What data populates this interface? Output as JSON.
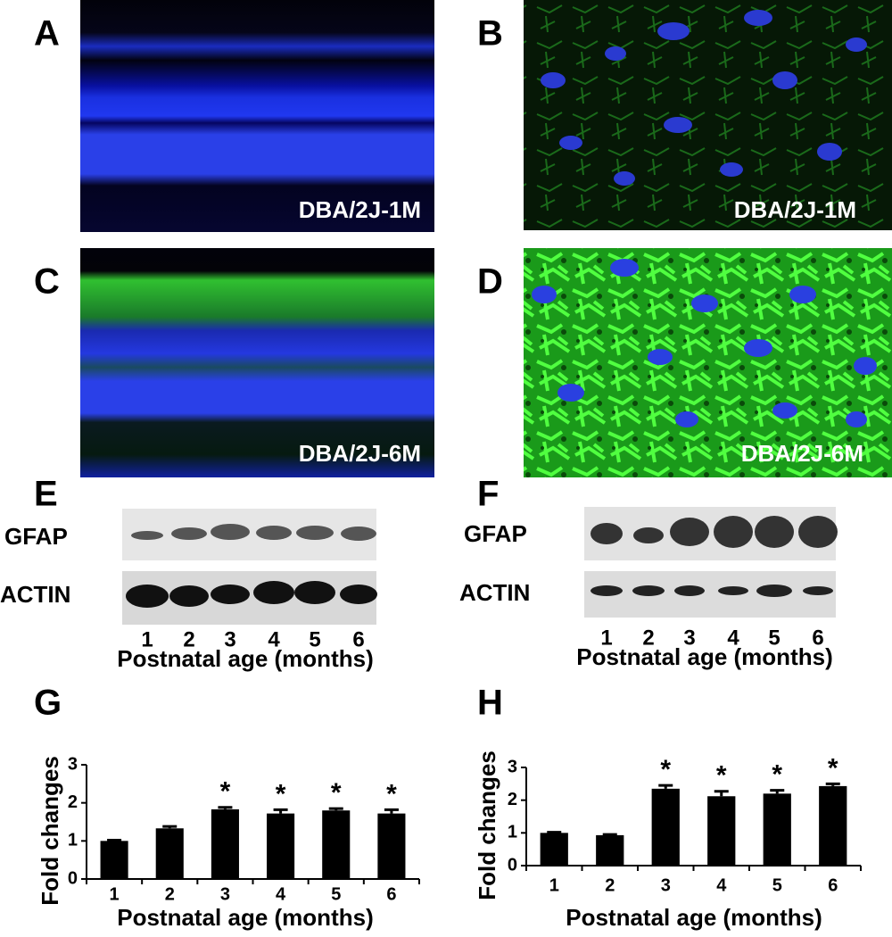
{
  "panels": [
    {
      "label": "A",
      "caption": "DBA/2J-1M"
    },
    {
      "label": "B",
      "caption": "DBA/2J-1M"
    },
    {
      "label": "C",
      "caption": "DBA/2J-6M"
    },
    {
      "label": "D",
      "caption": "DBA/2J-6M"
    }
  ],
  "blots": [
    {
      "label": "E",
      "rows": [
        "GFAP",
        "ACTIN"
      ],
      "lanes": [
        "1",
        "2",
        "3",
        "4",
        "5",
        "6"
      ],
      "xlabel": "Postnatal age (months)"
    },
    {
      "label": "F",
      "rows": [
        "GFAP",
        "ACTIN"
      ],
      "lanes": [
        "1",
        "2",
        "3",
        "4",
        "5",
        "6"
      ],
      "xlabel": "Postnatal age (months)"
    }
  ],
  "chart_data": [
    {
      "type": "bar",
      "label": "G",
      "categories": [
        "1",
        "2",
        "3",
        "4",
        "5",
        "6"
      ],
      "series": [
        {
          "color": "#000000",
          "values": [
            1.0,
            1.33,
            1.83,
            1.72,
            1.8,
            1.72
          ],
          "errors": [
            0.02,
            0.05,
            0.05,
            0.1,
            0.05,
            0.1
          ]
        }
      ],
      "ylabel": "Fold changes",
      "xlabel": "Postnatal age (months)",
      "ylim": [
        0,
        3
      ],
      "yticks": [
        0,
        1,
        2,
        3
      ],
      "annotations": [
        {
          "category": "3",
          "text": "*"
        },
        {
          "category": "4",
          "text": "*"
        },
        {
          "category": "5",
          "text": "*"
        },
        {
          "category": "6",
          "text": "*"
        }
      ]
    },
    {
      "type": "bar",
      "label": "H",
      "categories": [
        "1",
        "2",
        "3",
        "4",
        "5",
        "6"
      ],
      "series": [
        {
          "color": "#000000",
          "values": [
            1.0,
            0.93,
            2.35,
            2.12,
            2.2,
            2.43
          ],
          "errors": [
            0.02,
            0.02,
            0.1,
            0.15,
            0.1,
            0.07
          ]
        }
      ],
      "ylabel": "Fold changes",
      "xlabel": "Postnatal age (months)",
      "ylim": [
        0,
        3
      ],
      "yticks": [
        0,
        1,
        2,
        3
      ],
      "annotations": [
        {
          "category": "3",
          "text": "*"
        },
        {
          "category": "4",
          "text": "*"
        },
        {
          "category": "5",
          "text": "*"
        },
        {
          "category": "6",
          "text": "*"
        }
      ]
    }
  ]
}
